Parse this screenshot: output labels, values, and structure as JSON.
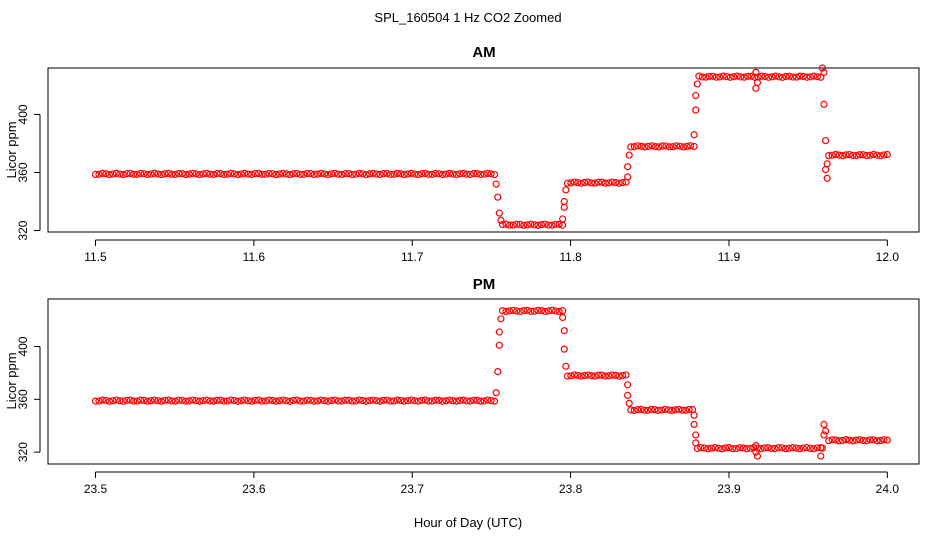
{
  "figure": {
    "title": "SPL_160504  1 Hz CO2 Zoomed",
    "xlabel": "Hour of Day (UTC)"
  },
  "colors": {
    "points": "#ff0000",
    "axes": "#000000",
    "background": "#ffffff"
  },
  "chart_data": [
    {
      "type": "scatter",
      "title": "AM",
      "xlabel": "Hour of Day (UTC)",
      "ylabel": "Licor ppm",
      "xlim": [
        11.47,
        12.02
      ],
      "ylim": [
        319,
        432
      ],
      "xticks": [
        "11.5",
        "11.6",
        "11.7",
        "11.8",
        "11.9",
        "12.0"
      ],
      "yticks": [
        "320",
        "360",
        "400"
      ],
      "series": [
        {
          "marker": "open-circle",
          "color": "#ff0000",
          "segments": [
            {
              "x0": 11.5,
              "x1": 11.752,
              "y": 359
            },
            {
              "x0": 11.757,
              "x1": 11.795,
              "y": 324
            },
            {
              "x0": 11.798,
              "x1": 11.835,
              "y": 353
            },
            {
              "x0": 11.838,
              "x1": 11.878,
              "y": 378
            },
            {
              "x0": 11.881,
              "x1": 11.958,
              "y": 426
            },
            {
              "x0": 11.963,
              "x1": 12.0,
              "y": 372
            }
          ],
          "points": [
            {
              "x": 11.753,
              "y": 352
            },
            {
              "x": 11.754,
              "y": 343
            },
            {
              "x": 11.755,
              "y": 332
            },
            {
              "x": 11.756,
              "y": 327
            },
            {
              "x": 11.795,
              "y": 328
            },
            {
              "x": 11.796,
              "y": 336
            },
            {
              "x": 11.796,
              "y": 340
            },
            {
              "x": 11.797,
              "y": 348
            },
            {
              "x": 11.836,
              "y": 357
            },
            {
              "x": 11.836,
              "y": 364
            },
            {
              "x": 11.837,
              "y": 372
            },
            {
              "x": 11.878,
              "y": 386
            },
            {
              "x": 11.879,
              "y": 403
            },
            {
              "x": 11.879,
              "y": 413
            },
            {
              "x": 11.88,
              "y": 421
            },
            {
              "x": 11.917,
              "y": 418
            },
            {
              "x": 11.918,
              "y": 422
            },
            {
              "x": 11.917,
              "y": 429
            },
            {
              "x": 11.959,
              "y": 432
            },
            {
              "x": 11.96,
              "y": 429
            },
            {
              "x": 11.96,
              "y": 407
            },
            {
              "x": 11.961,
              "y": 382
            },
            {
              "x": 11.961,
              "y": 362
            },
            {
              "x": 11.962,
              "y": 356
            },
            {
              "x": 11.962,
              "y": 366
            }
          ]
        }
      ]
    },
    {
      "type": "scatter",
      "title": "PM",
      "xlabel": "Hour of Day (UTC)",
      "ylabel": "Licor ppm",
      "xlim": [
        23.47,
        24.02
      ],
      "ylim": [
        311,
        436
      ],
      "xticks": [
        "23.5",
        "23.6",
        "23.7",
        "23.8",
        "23.9",
        "24.0"
      ],
      "yticks": [
        "320",
        "360",
        "400"
      ],
      "series": [
        {
          "marker": "open-circle",
          "color": "#ff0000",
          "segments": [
            {
              "x0": 23.5,
              "x1": 23.752,
              "y": 359
            },
            {
              "x0": 23.757,
              "x1": 23.795,
              "y": 427
            },
            {
              "x0": 23.798,
              "x1": 23.835,
              "y": 378
            },
            {
              "x0": 23.838,
              "x1": 23.877,
              "y": 352
            },
            {
              "x0": 23.88,
              "x1": 23.958,
              "y": 323
            },
            {
              "x0": 23.963,
              "x1": 24.0,
              "y": 329
            }
          ],
          "points": [
            {
              "x": 23.753,
              "y": 365
            },
            {
              "x": 23.754,
              "y": 381
            },
            {
              "x": 23.755,
              "y": 401
            },
            {
              "x": 23.755,
              "y": 411
            },
            {
              "x": 23.756,
              "y": 421
            },
            {
              "x": 23.795,
              "y": 422
            },
            {
              "x": 23.796,
              "y": 412
            },
            {
              "x": 23.796,
              "y": 398
            },
            {
              "x": 23.797,
              "y": 385
            },
            {
              "x": 23.836,
              "y": 371
            },
            {
              "x": 23.836,
              "y": 363
            },
            {
              "x": 23.837,
              "y": 357
            },
            {
              "x": 23.878,
              "y": 348
            },
            {
              "x": 23.878,
              "y": 341
            },
            {
              "x": 23.879,
              "y": 333
            },
            {
              "x": 23.879,
              "y": 327
            },
            {
              "x": 23.917,
              "y": 325
            },
            {
              "x": 23.917,
              "y": 320
            },
            {
              "x": 23.918,
              "y": 317
            },
            {
              "x": 23.958,
              "y": 317
            },
            {
              "x": 23.959,
              "y": 323
            },
            {
              "x": 23.96,
              "y": 333
            },
            {
              "x": 23.96,
              "y": 341
            },
            {
              "x": 23.961,
              "y": 336
            }
          ]
        }
      ]
    }
  ]
}
